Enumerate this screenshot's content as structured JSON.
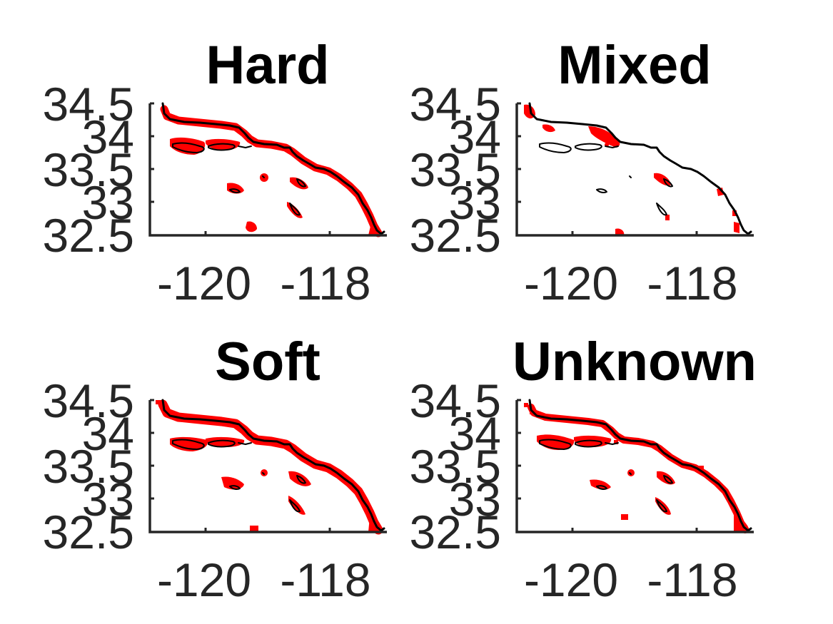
{
  "panels": [
    {
      "title": "Hard",
      "x_ticks": [
        "-120",
        "-118"
      ],
      "y_ticks": [
        "34.5",
        "34",
        "33.5",
        "33",
        "32.5"
      ]
    },
    {
      "title": "Mixed",
      "x_ticks": [
        "-120",
        "-118"
      ],
      "y_ticks": [
        "34.5",
        "34",
        "33.5",
        "33",
        "32.5"
      ]
    },
    {
      "title": "Soft",
      "x_ticks": [
        "-120",
        "-118"
      ],
      "y_ticks": [
        "34.5",
        "34",
        "33.5",
        "33",
        "32.5"
      ]
    },
    {
      "title": "Unknown",
      "x_ticks": [
        "-120",
        "-118"
      ],
      "y_ticks": [
        "34.5",
        "34",
        "33.5",
        "33",
        "32.5"
      ]
    }
  ],
  "colors": {
    "highlight": "#ff0000",
    "coastline": "#000000",
    "axis": "#262626"
  }
}
